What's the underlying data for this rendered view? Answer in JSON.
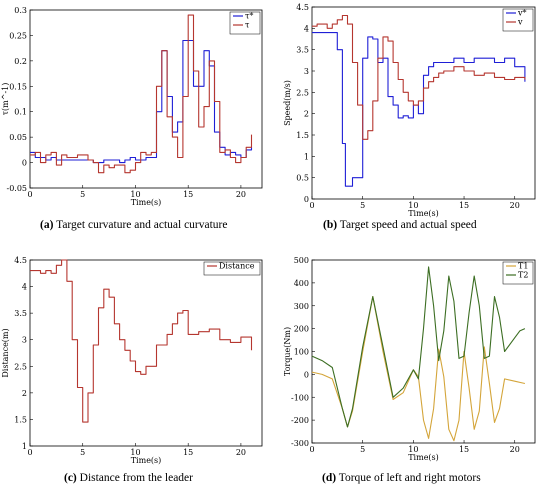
{
  "chart_data": [
    {
      "type": "line",
      "caption_letter": "(a)",
      "caption_text": "Target curvature and actual curvature",
      "xlabel": "Time(s)",
      "ylabel": "τ(m^-1)",
      "xlim": [
        0,
        22
      ],
      "ylim": [
        -0.05,
        0.3
      ],
      "xticks": [
        0,
        5,
        10,
        15,
        20
      ],
      "yticks": [
        -0.05,
        0,
        0.05,
        0.1,
        0.15,
        0.2,
        0.25,
        0.3
      ],
      "legend": "top-right",
      "series": [
        {
          "name": "τ*",
          "color": "#1f1fd6",
          "x": [
            0,
            0.5,
            1,
            1.5,
            2,
            2.5,
            3,
            4,
            5,
            6,
            7,
            8,
            8.5,
            9,
            9.5,
            10,
            10.5,
            11,
            11.5,
            12,
            12.5,
            13,
            13.5,
            14,
            14.5,
            15,
            15.5,
            16,
            16.5,
            17,
            17.5,
            18,
            18.5,
            19,
            19.5,
            20,
            20.5,
            21
          ],
          "y": [
            0.02,
            0.01,
            0.01,
            0.005,
            0.01,
            0.005,
            0.005,
            0.005,
            0.005,
            0.0,
            0.005,
            0.005,
            0.0,
            0.005,
            0.01,
            0.005,
            0.005,
            0.01,
            0.01,
            0.1,
            0.22,
            0.13,
            0.06,
            0.08,
            0.24,
            0.24,
            0.15,
            0.15,
            0.22,
            0.19,
            0.06,
            0.03,
            0.015,
            0.02,
            0.015,
            0.01,
            0.025,
            0.03
          ]
        },
        {
          "name": "τ",
          "color": "#b5362f",
          "x": [
            0,
            0.5,
            1,
            1.5,
            2,
            2.5,
            3,
            3.5,
            4,
            4.5,
            5,
            5.5,
            6,
            6.5,
            7,
            7.5,
            8,
            8.5,
            9,
            9.5,
            10,
            10.5,
            11,
            11.5,
            12,
            12.5,
            13,
            13.5,
            14,
            14.5,
            15,
            15.5,
            16,
            16.5,
            17,
            17.5,
            18,
            18.5,
            19,
            19.5,
            20,
            20.5,
            21
          ],
          "y": [
            0.015,
            0.02,
            0.0,
            0.015,
            0.02,
            -0.005,
            0.015,
            0.01,
            0.01,
            0.015,
            0.015,
            0.005,
            0.0,
            -0.02,
            -0.005,
            -0.01,
            -0.005,
            -0.005,
            -0.02,
            -0.015,
            0.0,
            0.02,
            0.015,
            0.02,
            0.15,
            0.22,
            0.09,
            0.05,
            0.01,
            0.13,
            0.29,
            0.18,
            0.07,
            0.11,
            0.2,
            0.12,
            0.02,
            0.025,
            0.01,
            0.0,
            0.01,
            0.03,
            0.055
          ]
        }
      ]
    },
    {
      "type": "line",
      "caption_letter": "(b)",
      "caption_text": "Target speed and actual speed",
      "xlabel": "Time(s)",
      "ylabel": "Speed(m/s)",
      "xlim": [
        0,
        22
      ],
      "ylim": [
        0,
        4.5
      ],
      "xticks": [
        0,
        5,
        10,
        15,
        20
      ],
      "yticks": [
        0,
        0.5,
        1,
        1.5,
        2,
        2.5,
        3,
        3.5,
        4,
        4.5
      ],
      "legend": "top-right",
      "series": [
        {
          "name": "v*",
          "color": "#1f1fd6",
          "x": [
            0,
            1,
            2,
            2.5,
            3,
            3.3,
            3.6,
            4,
            4.5,
            5,
            5.5,
            6,
            6.5,
            7,
            7.5,
            8,
            8.5,
            9,
            9.5,
            10,
            10.5,
            11,
            11.5,
            12,
            13,
            14,
            15,
            16,
            17,
            18,
            19,
            20,
            21
          ],
          "y": [
            3.9,
            3.9,
            3.9,
            3.5,
            1.3,
            0.3,
            0.3,
            0.5,
            0.5,
            3.3,
            3.8,
            3.75,
            3.2,
            3.3,
            2.4,
            2.2,
            1.9,
            1.95,
            1.9,
            2.2,
            2.0,
            2.9,
            3.1,
            3.2,
            3.2,
            3.3,
            3.2,
            3.3,
            3.3,
            3.2,
            3.3,
            3.1,
            2.75
          ]
        },
        {
          "name": "v",
          "color": "#b5362f",
          "x": [
            0,
            0.5,
            1,
            1.5,
            2,
            2.5,
            3,
            3.5,
            4,
            4.5,
            5,
            5.5,
            6,
            6.5,
            7,
            7.5,
            8,
            8.5,
            9,
            9.5,
            10,
            10.5,
            11,
            11.5,
            12,
            12.5,
            13,
            14,
            15,
            16,
            17,
            18,
            19,
            20,
            21
          ],
          "y": [
            4.05,
            4.1,
            4.1,
            4.0,
            4.1,
            4.2,
            4.3,
            4.1,
            3.2,
            2.2,
            1.4,
            1.6,
            2.3,
            3.3,
            3.8,
            3.7,
            3.2,
            2.8,
            2.5,
            2.3,
            2.2,
            2.3,
            2.6,
            2.75,
            2.85,
            2.95,
            3.0,
            3.1,
            3.0,
            2.9,
            2.95,
            2.85,
            2.8,
            2.85,
            2.8
          ]
        }
      ]
    },
    {
      "type": "line",
      "caption_letter": "(c)",
      "caption_text": "Distance from the leader",
      "xlabel": "Time(s)",
      "ylabel": "Distance(m)",
      "xlim": [
        0,
        22
      ],
      "ylim": [
        1,
        4.5
      ],
      "xticks": [
        0,
        5,
        10,
        15,
        20
      ],
      "yticks": [
        1,
        1.5,
        2,
        2.5,
        3,
        3.5,
        4,
        4.5
      ],
      "legend": "top-right",
      "series": [
        {
          "name": "Distance",
          "color": "#b5362f",
          "x": [
            0,
            0.5,
            1,
            1.5,
            2,
            2.5,
            3,
            3.5,
            4,
            4.5,
            5,
            5.5,
            6,
            6.5,
            7,
            7.5,
            8,
            8.5,
            9,
            9.5,
            10,
            10.5,
            11,
            12,
            13,
            13.5,
            14,
            14.5,
            15,
            16,
            17,
            18,
            19,
            20,
            21
          ],
          "y": [
            4.3,
            4.3,
            4.25,
            4.3,
            4.25,
            4.4,
            4.5,
            4.1,
            3.0,
            2.1,
            1.45,
            2.0,
            2.9,
            3.6,
            3.95,
            3.8,
            3.3,
            3.0,
            2.8,
            2.6,
            2.4,
            2.35,
            2.5,
            2.9,
            3.1,
            3.3,
            3.5,
            3.55,
            3.1,
            3.15,
            3.2,
            3.0,
            2.95,
            3.05,
            2.8
          ]
        }
      ]
    },
    {
      "type": "line",
      "caption_letter": "(d)",
      "caption_text": "Torque of left and right motors",
      "xlabel": "Time(s)",
      "ylabel": "Torque(Nm)",
      "xlim": [
        0,
        22
      ],
      "ylim": [
        -300,
        500
      ],
      "xticks": [
        0,
        5,
        10,
        15,
        20
      ],
      "yticks": [
        -300,
        -200,
        -100,
        0,
        100,
        200,
        300,
        400,
        500
      ],
      "legend": "top-right",
      "series": [
        {
          "name": "T1",
          "color": "#d4a53a",
          "x": [
            0,
            1,
            2,
            3,
            3.5,
            4,
            5,
            6,
            7,
            8,
            9,
            10,
            10.5,
            11,
            11.5,
            12,
            12.5,
            13,
            13.5,
            14,
            14.5,
            15,
            15.5,
            16,
            16.5,
            17,
            17.5,
            18,
            18.5,
            19,
            20,
            21
          ],
          "y": [
            10,
            0,
            -20,
            -150,
            -230,
            -160,
            100,
            340,
            100,
            -110,
            -80,
            20,
            -10,
            -200,
            -280,
            -150,
            110,
            -10,
            -240,
            -290,
            -200,
            100,
            -60,
            -240,
            -160,
            120,
            -40,
            -210,
            -150,
            -20,
            -30,
            -40
          ]
        },
        {
          "name": "T2",
          "color": "#3c6e23",
          "x": [
            0,
            1,
            2,
            3,
            3.5,
            4,
            5,
            6,
            7,
            8,
            9,
            10,
            10.5,
            11,
            11.5,
            12,
            12.5,
            13,
            13.5,
            14,
            14.5,
            15,
            15.5,
            16,
            16.5,
            17,
            17.5,
            18,
            18.5,
            19,
            20,
            20.5,
            21
          ],
          "y": [
            80,
            60,
            30,
            -150,
            -230,
            -150,
            120,
            340,
            120,
            -100,
            -60,
            20,
            -20,
            200,
            470,
            300,
            60,
            190,
            430,
            320,
            70,
            80,
            270,
            430,
            300,
            70,
            80,
            340,
            250,
            100,
            160,
            190,
            200
          ]
        }
      ]
    }
  ]
}
